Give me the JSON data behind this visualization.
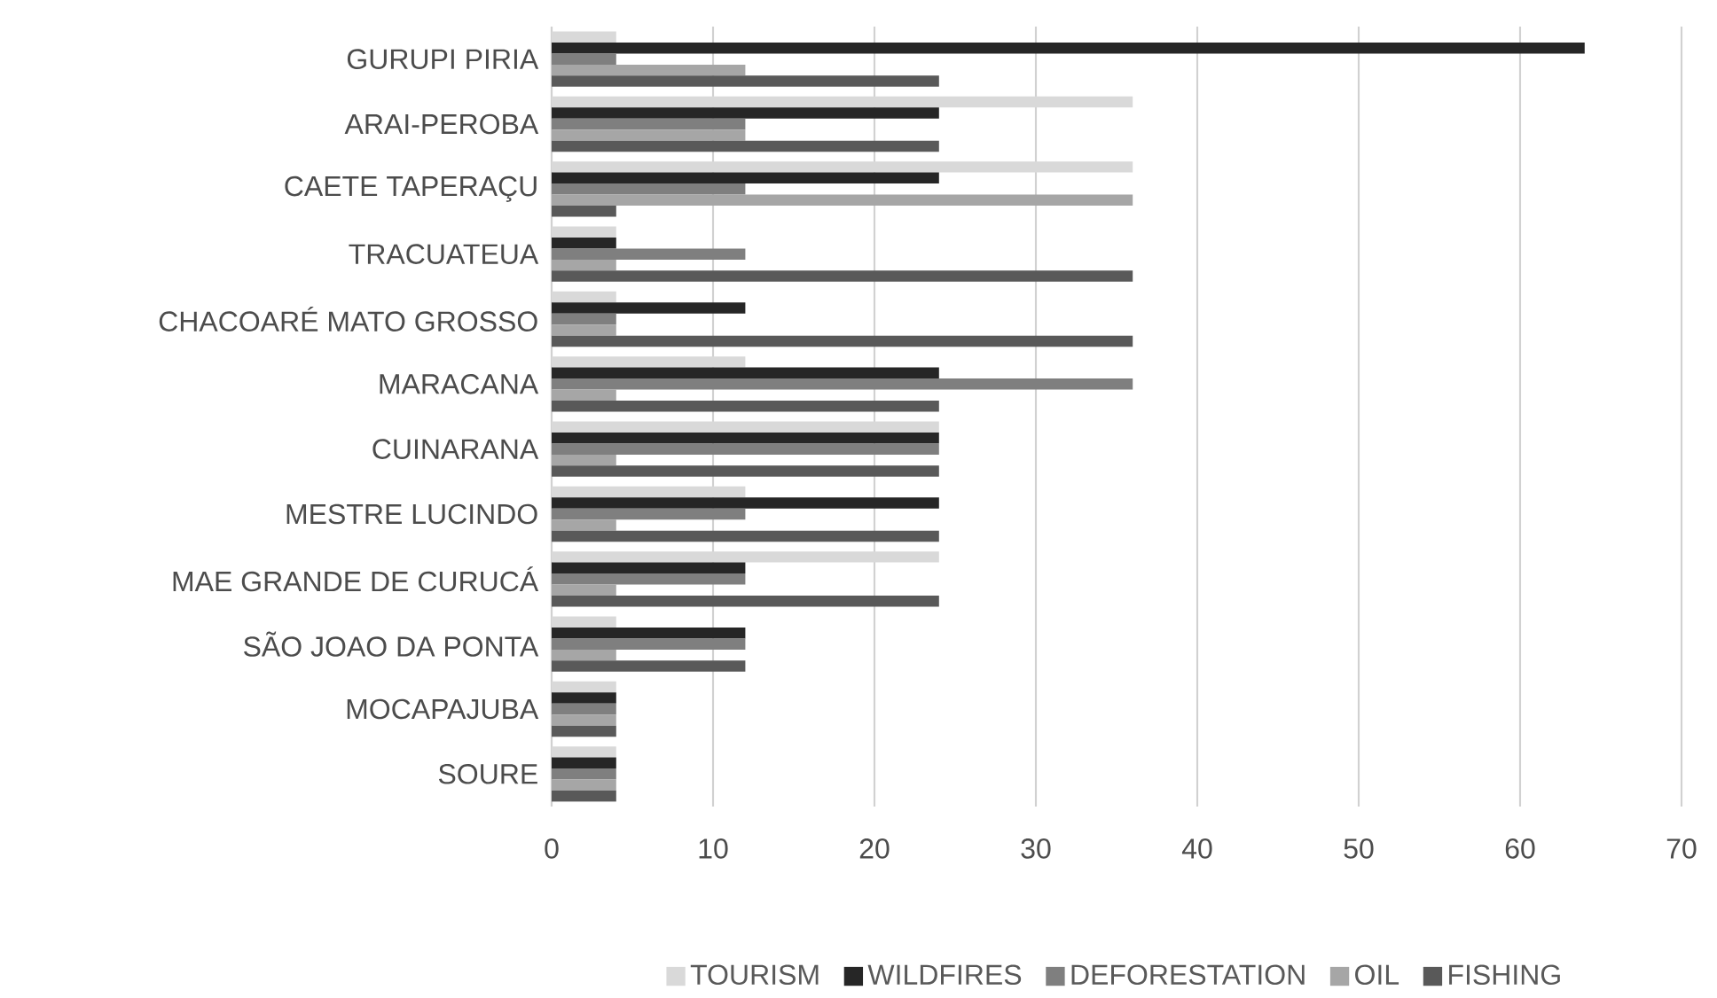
{
  "chart_data": {
    "type": "bar",
    "orientation": "horizontal",
    "categories": [
      "GURUPI PIRIA",
      "ARAI-PEROBA",
      "CAETE TAPERAÇU",
      "TRACUATEUA",
      "CHACOARÉ MATO GROSSO",
      "MARACANA",
      "CUINARANA",
      "MESTRE LUCINDO",
      "MAE GRANDE DE CURUCÁ",
      "SÃO JOAO DA PONTA",
      "MOCAPAJUBA",
      "SOURE"
    ],
    "series": [
      {
        "name": "TOURISM",
        "color": "#d9d9d9",
        "values": [
          4,
          36,
          36,
          4,
          4,
          12,
          24,
          12,
          24,
          4,
          4,
          4
        ]
      },
      {
        "name": "WILDFIRES",
        "color": "#262626",
        "values": [
          64,
          24,
          24,
          4,
          12,
          24,
          24,
          24,
          12,
          12,
          4,
          4
        ]
      },
      {
        "name": "DEFORESTATION",
        "color": "#7f7f7f",
        "values": [
          4,
          12,
          12,
          12,
          4,
          36,
          24,
          12,
          12,
          12,
          4,
          4
        ]
      },
      {
        "name": "OIL",
        "color": "#a6a6a6",
        "values": [
          12,
          12,
          36,
          4,
          4,
          4,
          4,
          4,
          4,
          4,
          4,
          4
        ]
      },
      {
        "name": "FISHING",
        "color": "#595959",
        "values": [
          24,
          24,
          4,
          36,
          36,
          24,
          24,
          24,
          24,
          12,
          4,
          4
        ]
      }
    ],
    "xlim": [
      0,
      70
    ],
    "xticks": [
      0,
      10,
      20,
      30,
      40,
      50,
      60,
      70
    ],
    "grid": "x",
    "legend": "bottom"
  }
}
